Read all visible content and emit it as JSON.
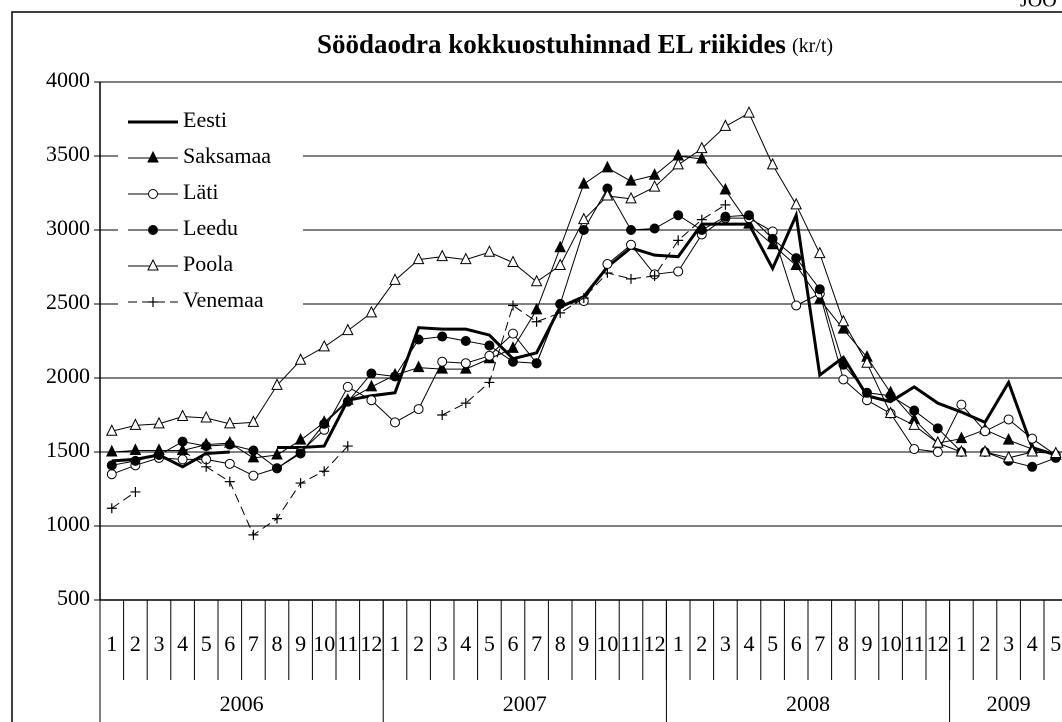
{
  "corner_note": "JOO",
  "chart_data": {
    "type": "line",
    "title": "Söödaodra kokkuostuhinnad EL riikides",
    "title_unit": "(kr/t)",
    "categories": [
      "1",
      "2",
      "3",
      "4",
      "5",
      "6",
      "7",
      "8",
      "9",
      "10",
      "11",
      "12",
      "1",
      "2",
      "3",
      "4",
      "5",
      "6",
      "7",
      "8",
      "9",
      "10",
      "11",
      "12",
      "1",
      "2",
      "3",
      "4",
      "5",
      "6",
      "7",
      "8",
      "9",
      "10",
      "11",
      "12",
      "1",
      "2",
      "3",
      "4",
      "5"
    ],
    "year_groups": [
      {
        "label": "2006",
        "span": 12
      },
      {
        "label": "2007",
        "span": 12
      },
      {
        "label": "2008",
        "span": 12
      },
      {
        "label": "2009",
        "span": 5
      }
    ],
    "ylim": [
      500,
      4000
    ],
    "yticks": [
      500,
      1000,
      1500,
      2000,
      2500,
      3000,
      3500,
      4000
    ],
    "grid": true,
    "legend": "upper-left",
    "series": [
      {
        "name": "Eesti",
        "color": "#000000",
        "marker": "none",
        "line_width": 3,
        "dash": false,
        "values": [
          1440,
          1450,
          1480,
          1400,
          1490,
          1500,
          null,
          1530,
          1530,
          1540,
          1850,
          1880,
          1900,
          2340,
          2330,
          2330,
          2290,
          2130,
          2170,
          2480,
          2550,
          2750,
          2880,
          2830,
          2820,
          3040,
          3040,
          3040,
          2740,
          3100,
          2020,
          2140,
          1880,
          1840,
          1940,
          1830,
          1770,
          1700,
          1970,
          1530,
          1480
        ]
      },
      {
        "name": "Saksamaa",
        "color": "#000000",
        "marker": "triangle-filled",
        "line_width": 1,
        "dash": false,
        "values": [
          1500,
          1510,
          1510,
          1510,
          1550,
          1560,
          1460,
          1480,
          1580,
          1700,
          1850,
          1940,
          2020,
          2070,
          2060,
          2060,
          2130,
          2200,
          2460,
          2880,
          3310,
          3420,
          3330,
          3370,
          3500,
          3480,
          3270,
          3040,
          2900,
          2760,
          2530,
          2330,
          2140,
          1900,
          1720,
          1560,
          1590,
          1650,
          1580,
          1520,
          1480
        ]
      },
      {
        "name": "Läti",
        "color": "#000000",
        "marker": "circle-open",
        "line_width": 1,
        "dash": false,
        "values": [
          1350,
          1410,
          1460,
          1450,
          1450,
          1420,
          1340,
          1390,
          1500,
          1650,
          1940,
          1850,
          1700,
          1790,
          2110,
          2100,
          2150,
          2300,
          2100,
          2500,
          2520,
          2770,
          2900,
          2700,
          2720,
          2970,
          3080,
          3080,
          2990,
          2490,
          2570,
          1990,
          1850,
          1760,
          1520,
          1500,
          1820,
          1640,
          1720,
          1590,
          1480
        ]
      },
      {
        "name": "Leedu",
        "color": "#000000",
        "marker": "circle-filled",
        "line_width": 1,
        "dash": false,
        "values": [
          1410,
          1440,
          1480,
          1570,
          1540,
          1550,
          1510,
          1390,
          1490,
          1690,
          1840,
          2030,
          2010,
          2260,
          2280,
          2250,
          2220,
          2110,
          2100,
          2500,
          3000,
          3280,
          3000,
          3010,
          3100,
          3000,
          3090,
          3100,
          2940,
          2810,
          2600,
          2090,
          1900,
          1880,
          1780,
          1660,
          1500,
          1500,
          1440,
          1400,
          1460
        ]
      },
      {
        "name": "Poola",
        "color": "#000000",
        "marker": "triangle-open",
        "line_width": 1,
        "dash": false,
        "values": [
          1640,
          1680,
          1690,
          1740,
          1730,
          1690,
          1700,
          1950,
          2120,
          2210,
          2320,
          2440,
          2660,
          2800,
          2820,
          2800,
          2850,
          2780,
          2650,
          2760,
          3070,
          3230,
          3210,
          3290,
          3440,
          3550,
          3700,
          3790,
          3440,
          3170,
          2840,
          2380,
          2100,
          1760,
          1680,
          1560,
          1500,
          1500,
          1460,
          1500,
          1490
        ]
      },
      {
        "name": "Venemaa",
        "color": "#000000",
        "marker": "plus",
        "line_width": 1,
        "dash": true,
        "values": [
          1120,
          1230,
          null,
          1510,
          1400,
          1300,
          940,
          1050,
          1290,
          1370,
          1540,
          null,
          null,
          null,
          1750,
          1830,
          1970,
          2490,
          2380,
          2440,
          2540,
          2710,
          2670,
          2690,
          2930,
          3070,
          3170,
          null,
          null,
          null,
          null,
          null,
          null,
          null,
          null,
          null,
          null,
          null,
          null,
          null,
          null
        ]
      }
    ]
  }
}
